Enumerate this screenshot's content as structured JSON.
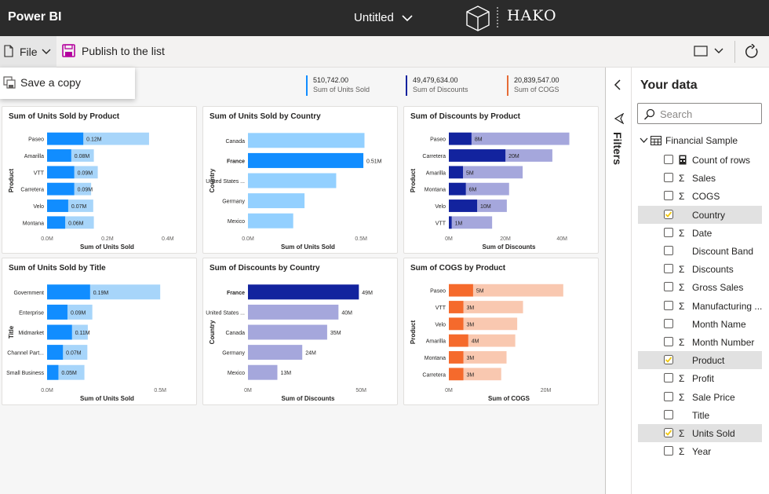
{
  "topbar": {
    "app_name": "Power BI",
    "doc_title": "Untitled",
    "logo_text": "HAKO"
  },
  "toolbar": {
    "file_label": "File",
    "publish_label": "Publish to the list"
  },
  "file_menu": {
    "save_copy_label": "Save a copy"
  },
  "kpis": [
    {
      "value": "510,742.00",
      "label": "Sum of Units Sold",
      "color": "#118dff"
    },
    {
      "value": "49,479,634.00",
      "label": "Sum of Discounts",
      "color": "#12239e"
    },
    {
      "value": "20,839,547.00",
      "label": "Sum of COGS",
      "color": "#e66c37"
    }
  ],
  "filters": {
    "label": "Filters"
  },
  "fields_pane": {
    "heading": "Your data",
    "search_placeholder": "Search",
    "table_name": "Financial Sample",
    "fields": [
      {
        "name": "Count of rows",
        "type": "calc",
        "checked": false
      },
      {
        "name": "Sales",
        "type": "sum",
        "checked": false
      },
      {
        "name": "COGS",
        "type": "sum",
        "checked": false
      },
      {
        "name": "Country",
        "type": "text",
        "checked": true
      },
      {
        "name": "Date",
        "type": "sum",
        "checked": false
      },
      {
        "name": "Discount Band",
        "type": "text",
        "checked": false
      },
      {
        "name": "Discounts",
        "type": "sum",
        "checked": false
      },
      {
        "name": "Gross Sales",
        "type": "sum",
        "checked": false
      },
      {
        "name": "Manufacturing ...",
        "type": "sum",
        "checked": false
      },
      {
        "name": "Month Name",
        "type": "text",
        "checked": false
      },
      {
        "name": "Month Number",
        "type": "sum",
        "checked": false
      },
      {
        "name": "Product",
        "type": "text",
        "checked": true
      },
      {
        "name": "Profit",
        "type": "sum",
        "checked": false
      },
      {
        "name": "Sale Price",
        "type": "sum",
        "checked": false
      },
      {
        "name": "Title",
        "type": "text",
        "checked": false
      },
      {
        "name": "Units Sold",
        "type": "sum",
        "checked": true
      },
      {
        "name": "Year",
        "type": "sum",
        "checked": false
      }
    ]
  },
  "chart_data": [
    {
      "type": "bar",
      "title": "Sum of Units Sold by Product",
      "ylabel": "Product",
      "xlabel": "Sum of Units Sold",
      "categories": [
        "Paseo",
        "Amarilla",
        "VTT",
        "Carretera",
        "Velo",
        "Montana"
      ],
      "values": [
        0.338,
        0.155,
        0.168,
        0.146,
        0.153,
        0.155
      ],
      "highlight": [
        0.12,
        0.08,
        0.09,
        0.09,
        0.07,
        0.06
      ],
      "data_labels": [
        "0.12M",
        "0.08M",
        "0.09M",
        "0.09M",
        "0.07M",
        "0.06M"
      ],
      "xlim": [
        0,
        0.45
      ],
      "ticks": [
        0,
        0.2,
        0.4
      ],
      "tick_labels": [
        "0.0M",
        "0.2M",
        "0.4M"
      ],
      "colors": {
        "base": "#a7d5fa",
        "highlight": "#118dff"
      }
    },
    {
      "type": "bar",
      "title": "Sum of Units Sold by Country",
      "ylabel": "Country",
      "xlabel": "Sum of Units Sold",
      "categories": [
        "Canada",
        "France",
        "United States ...",
        "Germany",
        "Mexico"
      ],
      "values": [
        0.515,
        0.51,
        0.39,
        0.25,
        0.2
      ],
      "highlight": [
        0,
        0.51,
        0,
        0,
        0
      ],
      "data_labels": [
        "",
        "0.51M",
        "",
        "",
        ""
      ],
      "xlim": [
        0,
        0.6
      ],
      "ticks": [
        0,
        0.5
      ],
      "tick_labels": [
        "0.0M",
        "0.5M"
      ],
      "colors": {
        "base": "#93d0ff",
        "highlight": "#118dff"
      }
    },
    {
      "type": "bar",
      "title": "Sum of Discounts by Product",
      "ylabel": "Product",
      "xlabel": "Sum of Discounts",
      "categories": [
        "Paseo",
        "Carretera",
        "Amarilla",
        "Montana",
        "Velo",
        "VTT"
      ],
      "values": [
        42.6,
        36.6,
        26.1,
        21.3,
        20.5,
        15.3
      ],
      "highlight": [
        8,
        20,
        5,
        6,
        10,
        1
      ],
      "data_labels": [
        "8M",
        "20M",
        "5M",
        "6M",
        "10M",
        "1M"
      ],
      "xlim": [
        0,
        48
      ],
      "ticks": [
        0,
        20,
        40
      ],
      "tick_labels": [
        "0M",
        "20M",
        "40M"
      ],
      "colors": {
        "base": "#a5a7dc",
        "highlight": "#12239e"
      }
    },
    {
      "type": "bar",
      "title": "Sum of Units Sold by Title",
      "ylabel": "Title",
      "xlabel": "Sum of Units Sold",
      "categories": [
        "Government",
        "Enterprise",
        "Midmarket",
        "Channel Part...",
        "Small Business"
      ],
      "values": [
        0.5,
        0.2,
        0.18,
        0.178,
        0.165
      ],
      "highlight": [
        0.19,
        0.09,
        0.11,
        0.07,
        0.05
      ],
      "data_labels": [
        "0.19M",
        "0.09M",
        "0.11M",
        "0.07M",
        "0.05M"
      ],
      "xlim": [
        0,
        0.6
      ],
      "ticks": [
        0,
        0.5
      ],
      "tick_labels": [
        "0.0M",
        "0.5M"
      ],
      "colors": {
        "base": "#a7d5fa",
        "highlight": "#118dff"
      }
    },
    {
      "type": "bar",
      "title": "Sum of Discounts by Country",
      "ylabel": "Country",
      "xlabel": "Sum of Discounts",
      "categories": [
        "France",
        "United States ...",
        "Canada",
        "Germany",
        "Mexico"
      ],
      "values": [
        49,
        40,
        35,
        24,
        13
      ],
      "highlight": [
        49,
        0,
        0,
        0,
        0
      ],
      "data_labels": [
        "49M",
        "40M",
        "35M",
        "24M",
        "13M"
      ],
      "xlim": [
        0,
        60
      ],
      "ticks": [
        0,
        50
      ],
      "tick_labels": [
        "0M",
        "50M"
      ],
      "colors": {
        "base": "#a5a7dc",
        "highlight": "#12239e"
      }
    },
    {
      "type": "bar",
      "title": "Sum of COGS by Product",
      "ylabel": "Product",
      "xlabel": "Sum of COGS",
      "categories": [
        "Paseo",
        "VTT",
        "Velo",
        "Amarilla",
        "Montana",
        "Carretera"
      ],
      "values": [
        23.6,
        15.3,
        14.1,
        13.7,
        11.9,
        10.8
      ],
      "highlight": [
        5,
        3,
        3,
        4,
        3,
        3
      ],
      "data_labels": [
        "5M",
        "3M",
        "3M",
        "4M",
        "3M",
        "3M"
      ],
      "xlim": [
        0,
        28
      ],
      "ticks": [
        0,
        20
      ],
      "tick_labels": [
        "0M",
        "20M"
      ],
      "colors": {
        "base": "#f9c8b0",
        "highlight": "#f56a2c"
      }
    }
  ]
}
